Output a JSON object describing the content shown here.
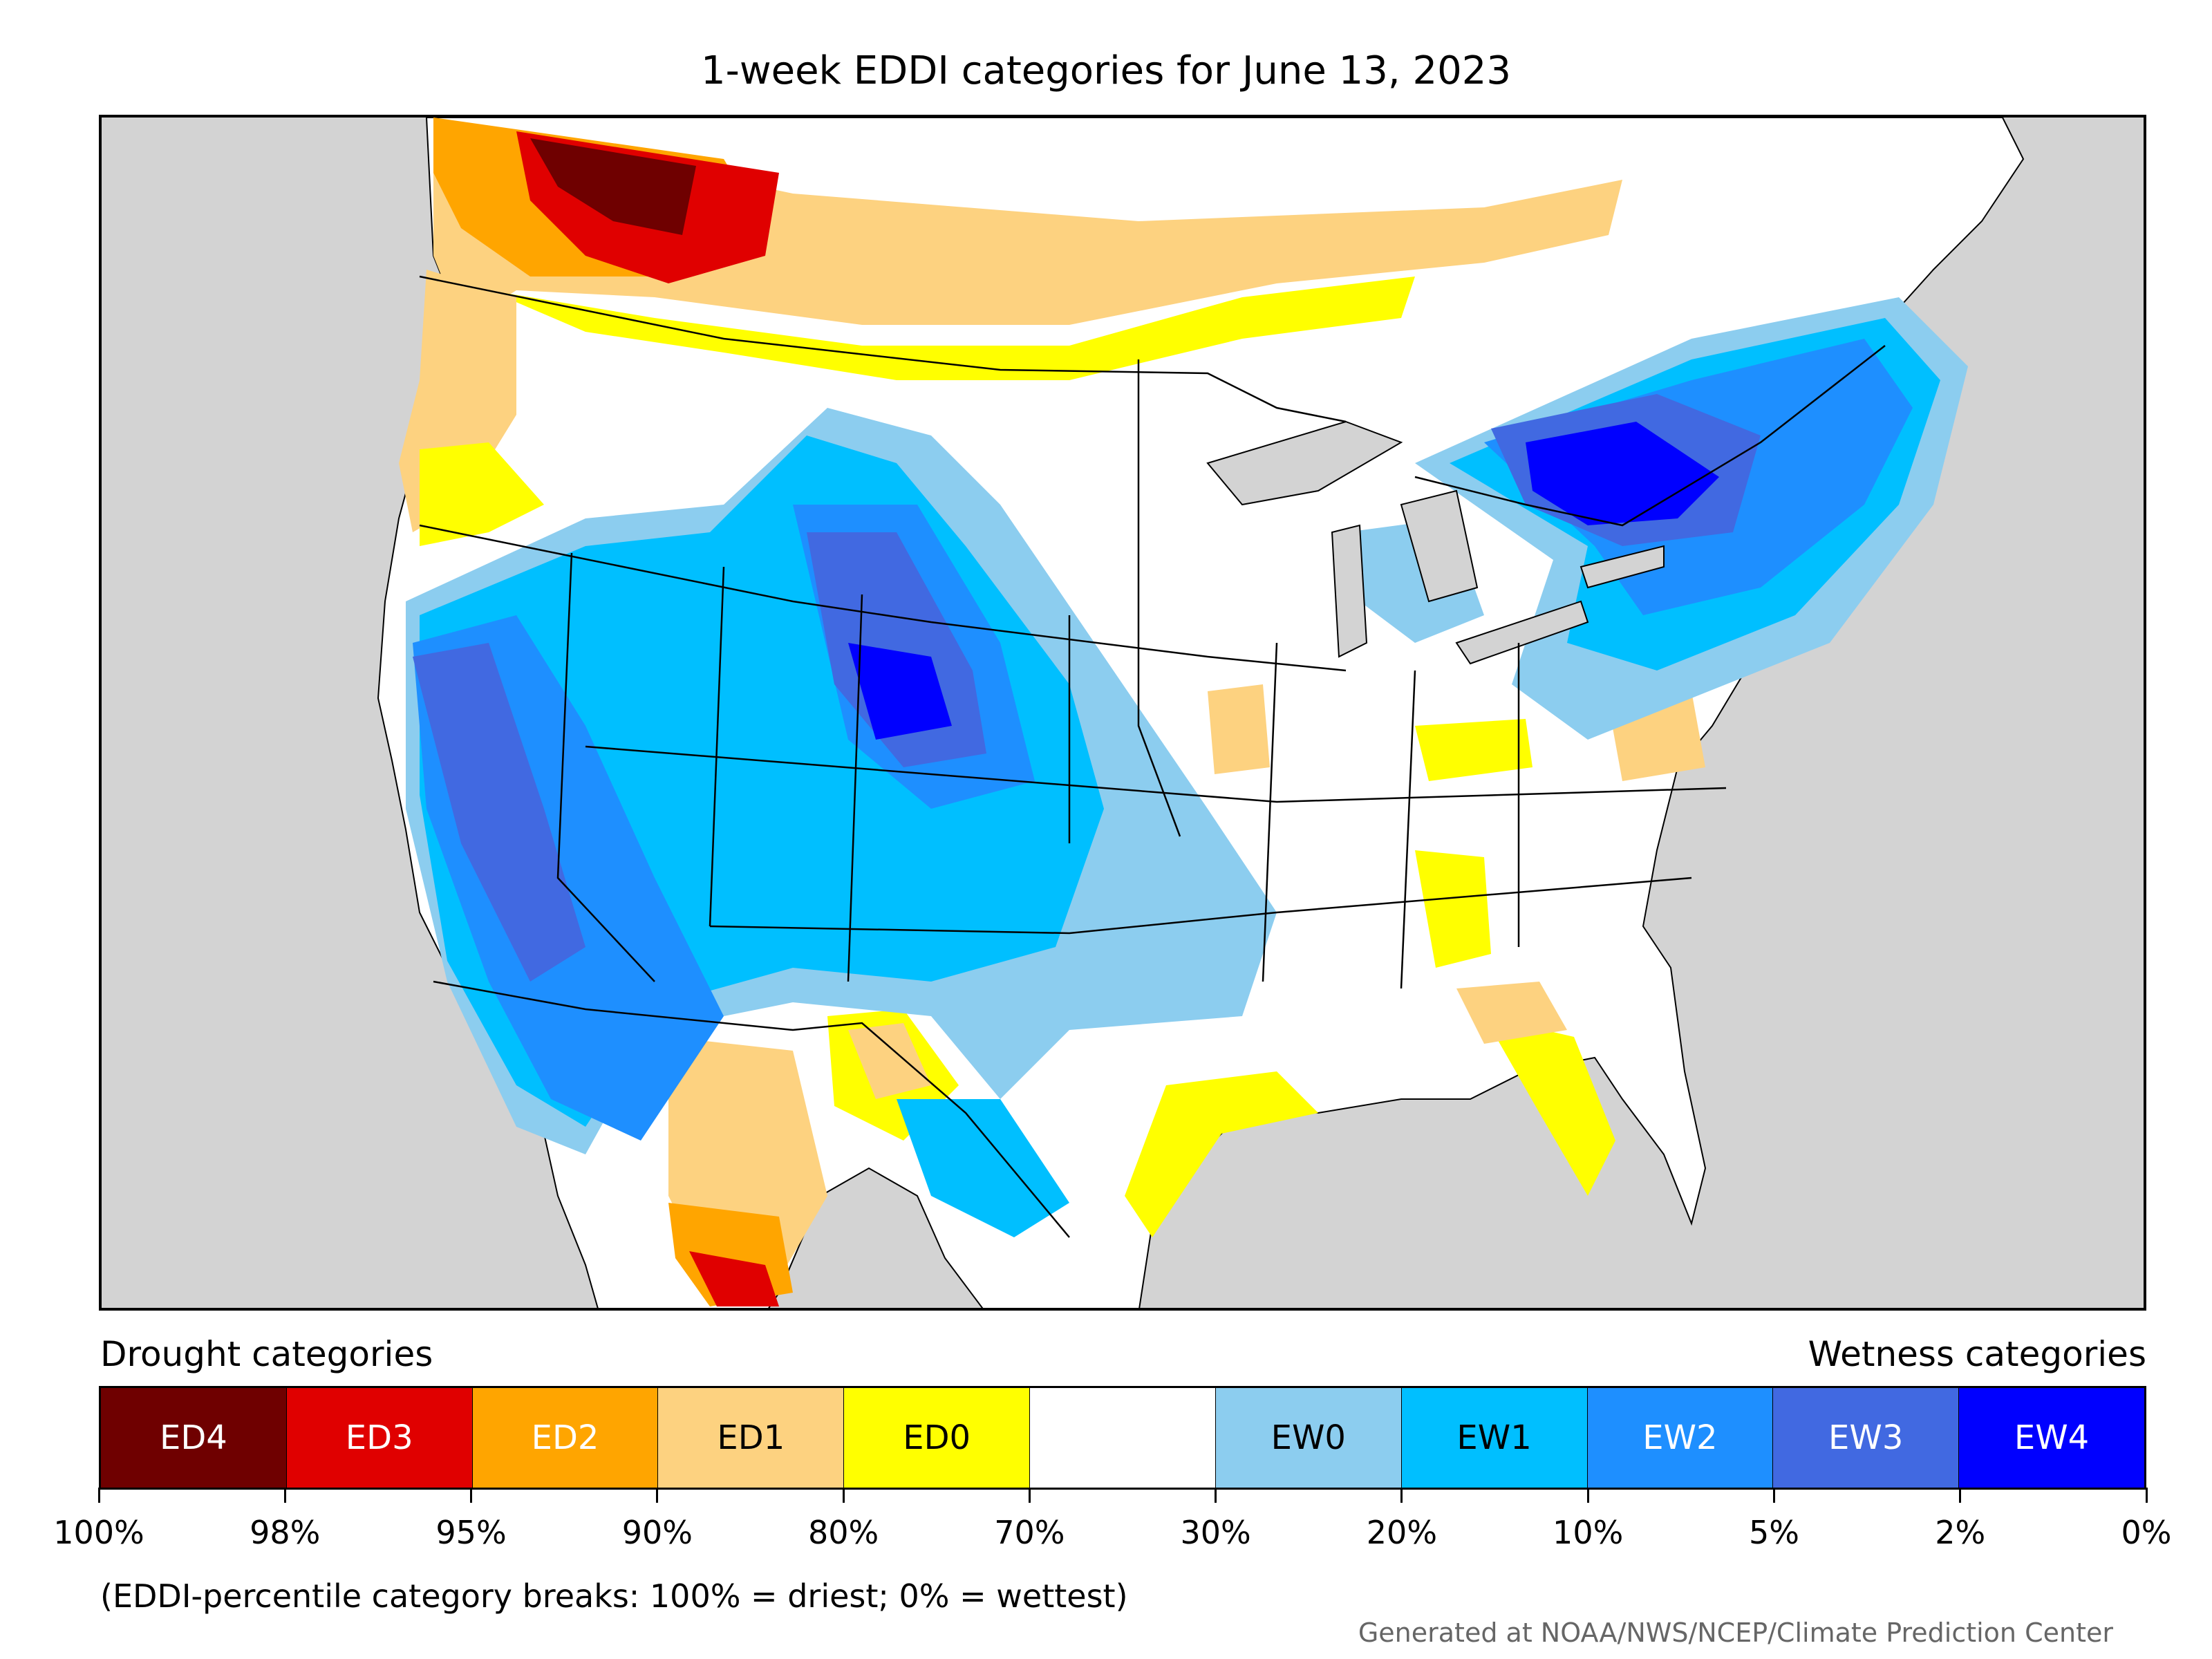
{
  "title": "1-week EDDI categories for June 13, 2023",
  "legend": {
    "drought_heading": "Drought categories",
    "wetness_heading": "Wetness categories",
    "categories": [
      {
        "label": "ED4",
        "color": "#6f0000",
        "text_color": "#ffffff"
      },
      {
        "label": "ED3",
        "color": "#e00000",
        "text_color": "#ffffff"
      },
      {
        "label": "ED2",
        "color": "#ffa500",
        "text_color": "#ffffff"
      },
      {
        "label": "ED1",
        "color": "#fdd280",
        "text_color": "#000000"
      },
      {
        "label": "ED0",
        "color": "#ffff00",
        "text_color": "#000000"
      },
      {
        "label": "",
        "color": "#ffffff",
        "text_color": "#000000"
      },
      {
        "label": "EW0",
        "color": "#8ccdef",
        "text_color": "#000000"
      },
      {
        "label": "EW1",
        "color": "#00bfff",
        "text_color": "#000000"
      },
      {
        "label": "EW2",
        "color": "#1e8fff",
        "text_color": "#ffffff"
      },
      {
        "label": "EW3",
        "color": "#4169e1",
        "text_color": "#ffffff"
      },
      {
        "label": "EW4",
        "color": "#0000ff",
        "text_color": "#ffffff"
      }
    ],
    "breaks": [
      "100%",
      "98%",
      "95%",
      "90%",
      "80%",
      "70%",
      "30%",
      "20%",
      "10%",
      "5%",
      "2%",
      "0%"
    ]
  },
  "footnote": "(EDDI-percentile category breaks: 100% = driest; 0% = wettest)",
  "credit": "Generated at NOAA/NWS/NCEP/Climate Prediction Center",
  "map": {
    "ocean_color": "#d3d3d3",
    "land_color": "#ffffff",
    "border_color": "#000000"
  }
}
